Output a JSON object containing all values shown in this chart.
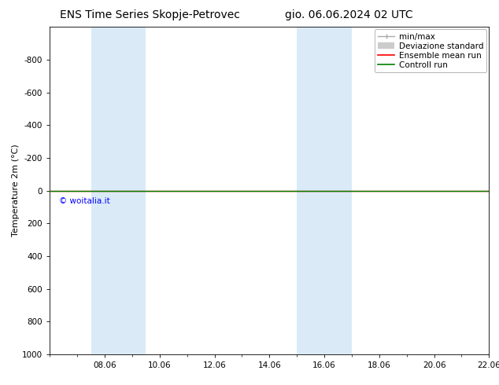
{
  "title_left": "ENS Time Series Skopje-Petrovec",
  "title_right": "gio. 06.06.2024 02 UTC",
  "ylabel": "Temperature 2m (°C)",
  "watermark": "© woitalia.it",
  "ylim_bottom": 1000,
  "ylim_top": -1000,
  "yticks": [
    -800,
    -600,
    -400,
    -200,
    0,
    200,
    400,
    600,
    800,
    1000
  ],
  "xtick_labels": [
    "08.06",
    "10.06",
    "12.06",
    "14.06",
    "16.06",
    "18.06",
    "20.06",
    "22.06"
  ],
  "xtick_positions": [
    2,
    4,
    6,
    8,
    10,
    12,
    14,
    16
  ],
  "xlim": [
    0,
    16
  ],
  "shaded_bands": [
    {
      "x_start": 1.5,
      "x_end": 3.5
    },
    {
      "x_start": 9.0,
      "x_end": 11.0
    }
  ],
  "horizontal_line_y": 0,
  "green_line_color": "#008000",
  "red_line_color": "#ff0000",
  "shaded_color": "#daeaf7",
  "legend_items": [
    {
      "label": "min/max"
    },
    {
      "label": "Deviazione standard"
    },
    {
      "label": "Ensemble mean run"
    },
    {
      "label": "Controll run"
    }
  ],
  "background_color": "#ffffff",
  "title_fontsize": 10,
  "axis_fontsize": 8,
  "tick_fontsize": 7.5,
  "legend_fontsize": 7.5
}
